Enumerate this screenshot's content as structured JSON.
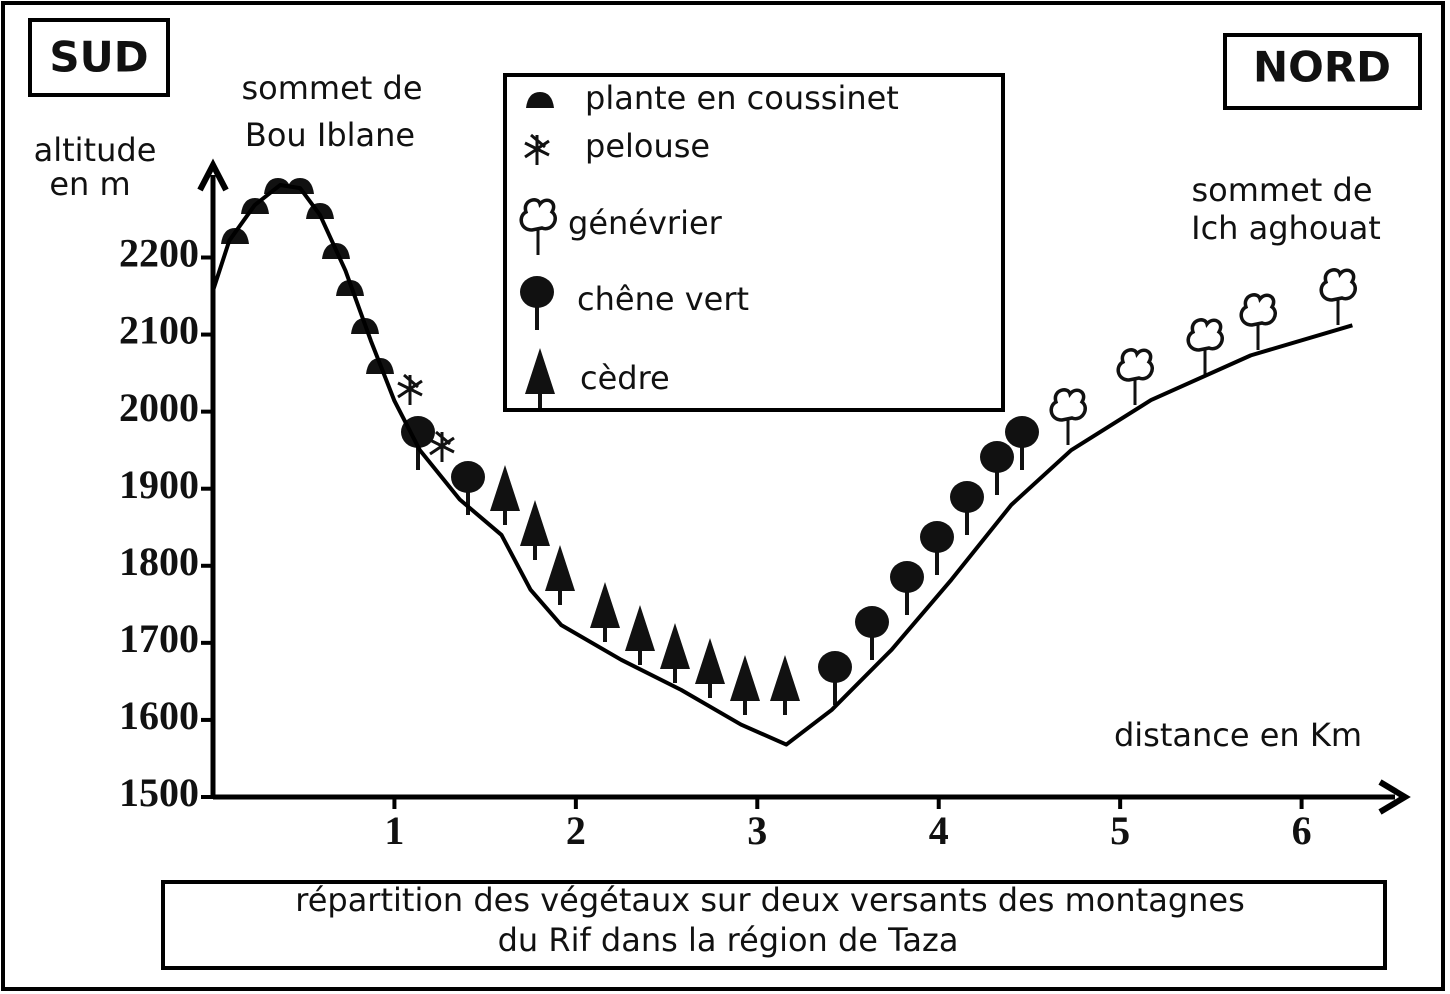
{
  "chart_data": {
    "type": "line",
    "title": [
      "répartition des végétaux sur deux versants des montagnes",
      "du Rif dans la région de Taza"
    ],
    "y_label": [
      "altitude",
      "en m"
    ],
    "x_label": "distance en Km",
    "annotations": {
      "south": "SUD",
      "north": "NORD",
      "south_summit": [
        "sommet de",
        "Bou Iblane"
      ],
      "north_summit": [
        "sommet de",
        "Ich aghouat"
      ]
    },
    "legend": [
      "plante en coussinet",
      "pelouse",
      "génévrier",
      "chêne vert",
      "cèdre"
    ],
    "x": [
      0,
      0.09,
      0.23,
      0.37,
      0.48,
      0.59,
      0.73,
      0.87,
      1.0,
      1.14,
      1.36,
      1.59,
      1.75,
      1.92,
      2.25,
      2.58,
      2.91,
      3.16,
      3.41,
      3.74,
      4.07,
      4.4,
      4.73,
      5.17,
      5.72,
      6.28
    ],
    "values": [
      2157,
      2222,
      2268,
      2294,
      2290,
      2255,
      2183,
      2092,
      2014,
      1950,
      1886,
      1840,
      1769,
      1723,
      1678,
      1639,
      1594,
      1568,
      1613,
      1691,
      1782,
      1879,
      1950,
      2015,
      2073,
      2112
    ],
    "color": "#000000",
    "xlim": [
      0,
      6.57
    ],
    "ylim": [
      1500,
      2320
    ],
    "xticks": [
      1,
      2,
      3,
      4,
      5,
      6
    ],
    "yticks": [
      1500,
      1600,
      1700,
      1800,
      1900,
      2000,
      2100,
      2200
    ],
    "grid": false
  }
}
